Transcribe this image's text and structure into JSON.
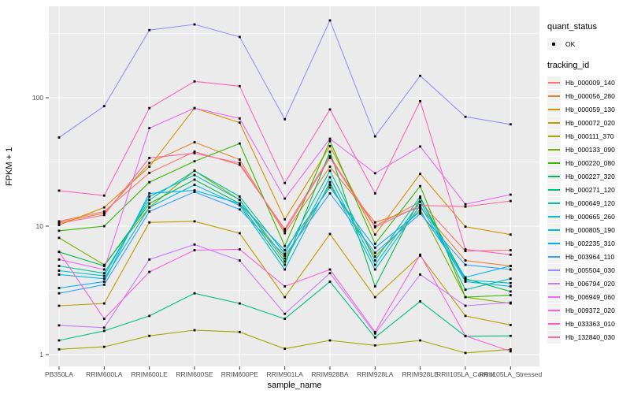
{
  "figure": {
    "panel_bg": "#EBEBEB",
    "grid_color": "#FFFFFF",
    "tick_color": "#333333",
    "tick_text_color": "#4D4D4D",
    "axis_title_color": "#000000",
    "marker_color": "#000000",
    "legend_key_bg": "#F2F2F2"
  },
  "axes": {
    "x_title": "sample_name",
    "y_title": "FPKM + 1"
  },
  "legend": {
    "quant_status": {
      "title": "quant_status",
      "items": [
        {
          "label": "OK",
          "symbol": "black-point"
        }
      ]
    },
    "tracking_id": {
      "title": "tracking_id"
    }
  },
  "chart_data": {
    "type": "line",
    "title": "",
    "xlabel": "sample_name",
    "ylabel": "FPKM + 1",
    "yscale": "log10",
    "yticks": [
      1,
      10,
      100
    ],
    "ytick_labels": [
      "1",
      "10",
      "100"
    ],
    "yminor": [
      3.162,
      31.62,
      316.2
    ],
    "ylim": [
      0.85,
      515
    ],
    "grid": "white major+minor on gray panel",
    "legend_position": "right",
    "point_marker": "small black square at every data point (quant_status = OK)",
    "categories": [
      "PB350LA",
      "RRIM600LA",
      "RRIM600LE",
      "RRIM600SE",
      "RRIM600PE",
      "RRIM901LA",
      "RRIM928BA",
      "RRIM928LA",
      "RRIM928LE",
      "RRII105LA_Control",
      "RRII105LA_Stressed"
    ],
    "series": [
      {
        "name": "Hb_000009_140",
        "color": "#F8766D",
        "values": [
          10.9,
          13.0,
          26,
          38,
          30,
          9.5,
          35,
          10.0,
          15.5,
          6.4,
          6.5
        ]
      },
      {
        "name": "Hb_000056_280",
        "color": "#EA8331",
        "values": [
          10.7,
          12.6,
          31,
          45,
          33,
          8.8,
          29,
          10.7,
          14.0,
          5.4,
          4.9
        ]
      },
      {
        "name": "Hb_000059_130",
        "color": "#D89000",
        "values": [
          10.2,
          14.0,
          29,
          83,
          64,
          11.3,
          42,
          8.6,
          25.5,
          9.9,
          8.6
        ]
      },
      {
        "name": "Hb_000072_020",
        "color": "#C09B00",
        "values": [
          2.4,
          2.5,
          10.7,
          10.9,
          8.8,
          2.8,
          8.7,
          2.8,
          5.9,
          2.0,
          1.7
        ]
      },
      {
        "name": "Hb_000111_370",
        "color": "#A3A500",
        "values": [
          1.1,
          1.15,
          1.4,
          1.55,
          1.5,
          1.11,
          1.29,
          1.18,
          1.29,
          1.03,
          1.1
        ]
      },
      {
        "name": "Hb_000133_090",
        "color": "#7CAE00",
        "values": [
          8.1,
          5.0,
          14,
          27,
          16,
          5.6,
          21,
          5.8,
          13.5,
          2.8,
          2.5
        ]
      },
      {
        "name": "Hb_000220_080",
        "color": "#39B600",
        "values": [
          9.2,
          10.0,
          22,
          32,
          44,
          7.0,
          46,
          7.3,
          20.5,
          2.8,
          2.9
        ]
      },
      {
        "name": "Hb_000227_320",
        "color": "#00BB4E",
        "values": [
          6.3,
          4.9,
          15,
          23,
          15,
          5.0,
          38,
          3.4,
          16.5,
          3.9,
          3.1
        ]
      },
      {
        "name": "Hb_000271_120",
        "color": "#00BF7D",
        "values": [
          1.29,
          1.53,
          2.0,
          3.0,
          2.5,
          1.9,
          3.7,
          1.36,
          2.6,
          1.39,
          1.4
        ]
      },
      {
        "name": "Hb_000649_120",
        "color": "#00C1A3",
        "values": [
          4.9,
          4.3,
          16,
          27,
          17,
          6.1,
          27,
          5.4,
          17,
          3.2,
          3.9
        ]
      },
      {
        "name": "Hb_000665_260",
        "color": "#00BFC4",
        "values": [
          4.5,
          4.1,
          17,
          25,
          16,
          5.3,
          24,
          5.0,
          15.5,
          3.8,
          3.6
        ]
      },
      {
        "name": "Hb_000805_190",
        "color": "#00BAE0",
        "values": [
          4.2,
          3.9,
          14,
          21,
          14.5,
          4.6,
          22,
          4.6,
          14.5,
          3.7,
          3.4
        ]
      },
      {
        "name": "Hb_002235_310",
        "color": "#00B0F6",
        "values": [
          3.3,
          3.7,
          18,
          19,
          15,
          6.5,
          20,
          6.8,
          13.0,
          4.0,
          4.9
        ]
      },
      {
        "name": "Hb_003964_110",
        "color": "#35A2FF",
        "values": [
          3.0,
          3.5,
          13,
          18.5,
          13.5,
          5.9,
          18,
          6.2,
          12.5,
          5.0,
          4.6
        ]
      },
      {
        "name": "Hb_005504_030",
        "color": "#9590FF",
        "values": [
          49,
          86,
          336,
          372,
          297,
          68,
          400,
          50,
          148,
          71,
          62
        ]
      },
      {
        "name": "Hb_006794_020",
        "color": "#C77CFF",
        "values": [
          1.69,
          1.62,
          5.5,
          7.2,
          5.4,
          2.08,
          4.3,
          1.46,
          4.2,
          2.4,
          2.54
        ]
      },
      {
        "name": "Hb_006949_060",
        "color": "#E76BF3",
        "values": [
          5.5,
          4.6,
          58,
          83,
          69,
          16.4,
          48,
          25.8,
          41.7,
          14.8,
          17.6
        ]
      },
      {
        "name": "Hb_009372_020",
        "color": "#FA62DB",
        "values": [
          6.3,
          1.9,
          4.4,
          6.5,
          6.6,
          3.4,
          4.6,
          1.5,
          6.0,
          1.4,
          1.06
        ]
      },
      {
        "name": "Hb_033363_010",
        "color": "#FF62BC",
        "values": [
          18.9,
          17.3,
          83,
          134,
          123,
          21.7,
          81,
          18,
          94,
          6.6,
          6.0
        ]
      },
      {
        "name": "Hb_132840_030",
        "color": "#FF6A98",
        "values": [
          10.5,
          12.2,
          34,
          37,
          31,
          9.2,
          34,
          9.8,
          14.5,
          14.2,
          15.7
        ]
      }
    ]
  }
}
